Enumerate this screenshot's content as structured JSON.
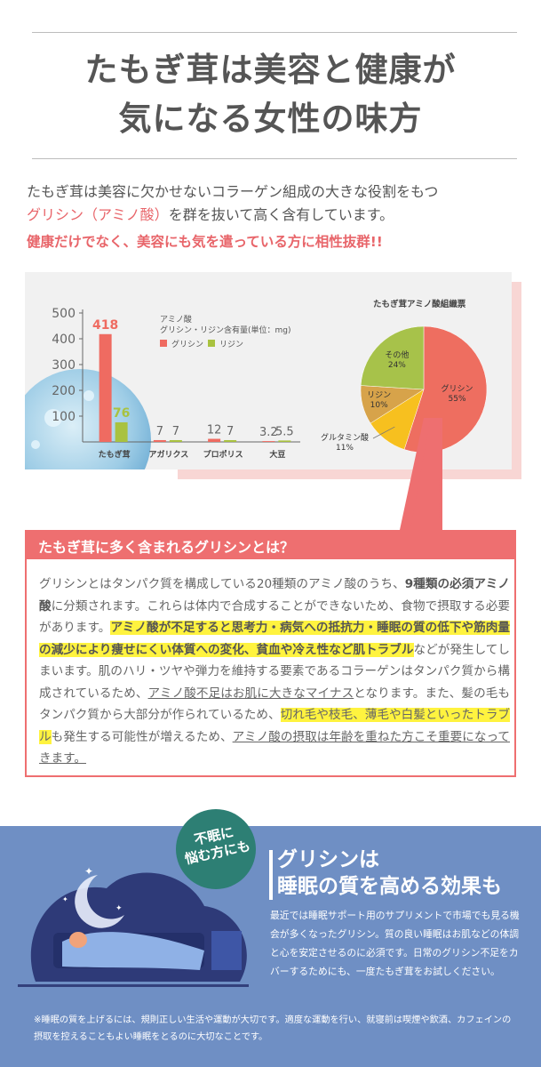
{
  "header": {
    "title_line1": "たもぎ茸は美容と健康が",
    "title_line2": "気になる女性の味方"
  },
  "intro": {
    "line1": "たもぎ茸は美容に欠かせないコラーゲン組成の大きな役割をもつ",
    "line2_highlight": "グリシン（アミノ酸）",
    "line2_rest": "を群を抜いて高く含有しています。",
    "line3": "健康だけでなく、美容にも気を遣っている方に相性抜群!!"
  },
  "chart_data": [
    {
      "type": "bar",
      "title": "アミノ酸",
      "subtitle": "グリシン・リジン含有量(単位：mg)",
      "categories": [
        "たもぎ茸",
        "アガリクス",
        "プロポリス",
        "大豆"
      ],
      "series": [
        {
          "name": "グリシン",
          "values": [
            418,
            7,
            12,
            3.2
          ],
          "color": "#ef6b61"
        },
        {
          "name": "リジン",
          "values": [
            76,
            7,
            7,
            5.5
          ],
          "color": "#a9c23f"
        }
      ],
      "data_labels": [
        [
          "418",
          "7",
          "12",
          "3.2"
        ],
        [
          "76",
          "7",
          "7",
          "5.5"
        ]
      ],
      "yticks": [
        "0",
        "100",
        "200",
        "300",
        "400",
        "500"
      ],
      "ylim": [
        0,
        500
      ],
      "legend_position": "top-right"
    },
    {
      "type": "pie",
      "title": "たもぎ茸アミノ酸組織票",
      "slices": [
        {
          "label": "グリシン",
          "pct_label": "55%",
          "value": 55,
          "color": "#ee6e60"
        },
        {
          "label": "グルタミン酸",
          "pct_label": "11%",
          "value": 11,
          "color": "#f7c01f"
        },
        {
          "label": "リジン",
          "pct_label": "10%",
          "value": 10,
          "color": "#d7a34a"
        },
        {
          "label": "その他",
          "pct_label": "24%",
          "value": 24,
          "color": "#a7c24a"
        }
      ]
    }
  ],
  "glycine": {
    "title": "たもぎ茸に多く含まれるグリシンとは？",
    "p1": "グリシンとはタンパク質を構成している20種類のアミノ酸のうち、",
    "p1_bold": "9種類の必須アミノ酸",
    "p2": "に分類されます。これらは体内で合成することができないため、食物で摂取する必要があります。",
    "hl1": "アミノ酸が不足すると思考力・病気への抵抗力・睡眠の質の低下や筋肉量の減少により痩せにくい体質への変化、貧血や冷え性など肌トラブル",
    "p3": "などが発生してしまいます。肌のハリ・ツヤや弾力を維持する要素であるコラーゲンはタンパク質から構成されているため、",
    "ul1": "アミノ酸不足はお肌に大きなマイナス",
    "p4": "となります。また、髪の毛もタンパク質から大部分が作られているため、",
    "hl2": "切れ毛や枝毛、薄毛や白髪といったトラブル",
    "p5": "も発生する可能性が増えるため、",
    "ul2": "アミノ酸の摂取は年齢を重ねた方こそ重要になってきます。"
  },
  "sleep": {
    "badge_line1": "不眠に",
    "badge_line2": "悩む方にも",
    "title_line1": "グリシンは",
    "title_line2": "睡眠の質を高める効果も",
    "text": "最近では睡眠サポート用のサプリメントで市場でも見る機会が多くなったグリシン。質の良い睡眠はお肌などの体調と心を安定させるのに必須です。日常のグリシン不足をカバーするためにも、一度たもぎ茸をお試しください。",
    "note": "※睡眠の質を上げるには、規則正しい生活や運動が大切です。適度な運動を行い、就寝前は喫煙や飲酒、カフェインの摂取を控えることもよい睡眠をとるのに大切なことです。"
  }
}
